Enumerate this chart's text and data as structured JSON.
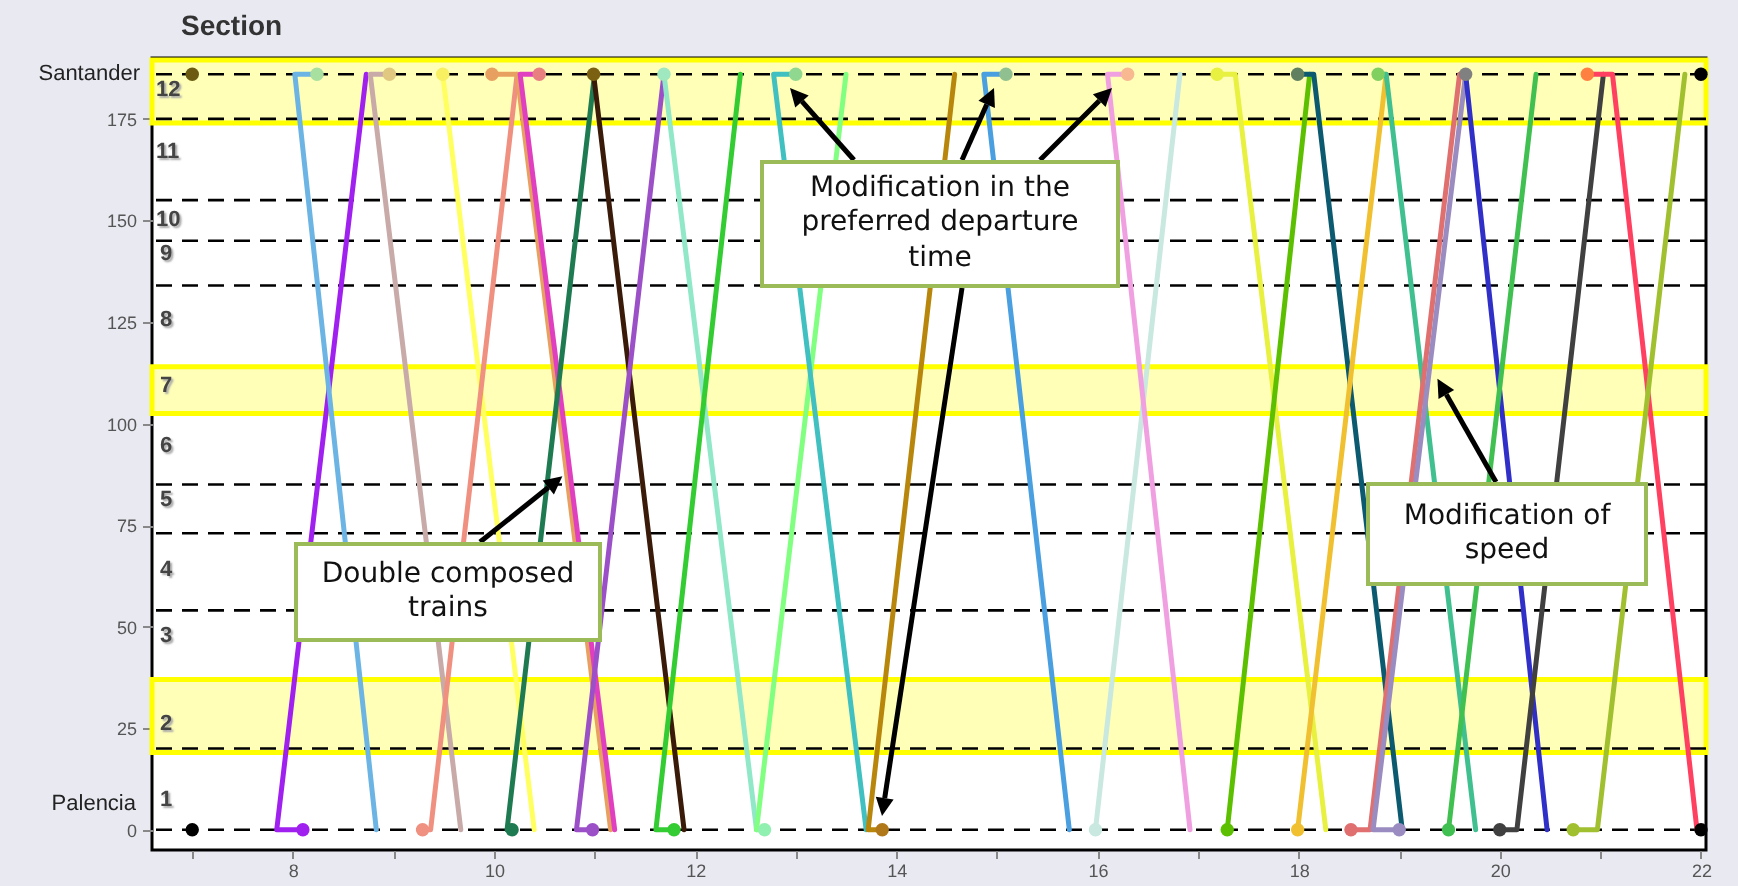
{
  "chart_data": {
    "type": "line",
    "ylabel": "Section",
    "xlim": [
      6.6,
      22.05
    ],
    "xticks": [
      {
        "value": 7,
        "label": null
      },
      8,
      {
        "value": 9,
        "label": null
      },
      10,
      {
        "value": 11,
        "label": null
      },
      12,
      {
        "value": 13,
        "label": null
      },
      14,
      {
        "value": 15,
        "label": null
      },
      16,
      {
        "value": 17,
        "label": null
      },
      18,
      {
        "value": 19,
        "label": null
      },
      20,
      {
        "value": 21,
        "label": null
      },
      22
    ],
    "ylim": [
      -5,
      190
    ],
    "yticks": [
      0,
      25,
      50,
      75,
      100,
      125,
      150,
      175
    ],
    "grid": false,
    "legend": false,
    "series": [
      {
        "type": "line",
        "color": "#a020f0",
        "x": [
          8.1,
          7.84,
          8.73
        ],
        "values": [
          0,
          0,
          186
        ]
      },
      {
        "type": "line",
        "color": "#6cb4e4",
        "x": [
          8.24,
          8.02,
          8.83
        ],
        "values": [
          186,
          186,
          0
        ]
      },
      {
        "type": "line",
        "color": "#c8aaa8",
        "x": [
          8.96,
          8.77,
          9.67
        ],
        "values": [
          186,
          186,
          0
        ]
      },
      {
        "type": "line",
        "color": "#ffff60",
        "x": [
          9.49,
          10.4
        ],
        "values": [
          186,
          0
        ]
      },
      {
        "type": "line",
        "color": "#f09080",
        "x": [
          9.29,
          9.37,
          10.23
        ],
        "values": [
          0,
          0,
          186
        ]
      },
      {
        "type": "line",
        "color": "#e8a060",
        "x": [
          9.98,
          10.23,
          11.16
        ],
        "values": [
          186,
          186,
          0
        ]
      },
      {
        "type": "line",
        "color": "#e040c0",
        "x": [
          10.45,
          10.26,
          11.2
        ],
        "values": [
          186,
          186,
          0
        ]
      },
      {
        "type": "line",
        "color": "#1e7a50",
        "x": [
          10.18,
          10.13,
          11.0
        ],
        "values": [
          0,
          0,
          186
        ]
      },
      {
        "type": "line",
        "color": "#3a1a08",
        "x": [
          10.99,
          11.89
        ],
        "values": [
          186,
          0
        ]
      },
      {
        "type": "line",
        "color": "#9b50c8",
        "x": [
          10.98,
          10.82,
          11.69
        ],
        "values": [
          0,
          0,
          186
        ]
      },
      {
        "type": "line",
        "color": "#90e8c8",
        "x": [
          11.69,
          12.61
        ],
        "values": [
          186,
          0
        ]
      },
      {
        "type": "line",
        "color": "#80ff80",
        "x": [
          12.69,
          12.61,
          13.5
        ],
        "values": [
          0,
          0,
          186
        ]
      },
      {
        "type": "line",
        "color": "#33cc33",
        "x": [
          11.79,
          11.61,
          12.45
        ],
        "values": [
          0,
          0,
          186
        ]
      },
      {
        "type": "line",
        "color": "#40c0c0",
        "x": [
          13.0,
          12.78,
          13.7
        ],
        "values": [
          186,
          186,
          0
        ]
      },
      {
        "type": "line",
        "color": "#b8860b",
        "x": [
          13.86,
          13.72,
          14.58
        ],
        "values": [
          0,
          0,
          186
        ]
      },
      {
        "type": "line",
        "color": "#4a9fe0",
        "x": [
          15.09,
          14.87,
          15.72
        ],
        "values": [
          186,
          186,
          0
        ]
      },
      {
        "type": "line",
        "color": "#c8e8e0",
        "x": [
          15.98,
          16.82
        ],
        "values": [
          0,
          186
        ]
      },
      {
        "type": "line",
        "color": "#f0a0e0",
        "x": [
          16.3,
          16.1,
          16.92
        ],
        "values": [
          186,
          186,
          0
        ]
      },
      {
        "type": "line",
        "color": "#e8f040",
        "x": [
          17.19,
          17.37,
          18.27
        ],
        "values": [
          186,
          186,
          0
        ]
      },
      {
        "type": "line",
        "color": "#5cc000",
        "x": [
          17.29,
          18.11
        ],
        "values": [
          0,
          186
        ]
      },
      {
        "type": "line",
        "color": "#0b5a70",
        "x": [
          17.99,
          18.15,
          19.03
        ],
        "values": [
          186,
          186,
          0
        ]
      },
      {
        "type": "line",
        "color": "#f0c030",
        "x": [
          17.99,
          18.87
        ],
        "values": [
          0,
          186
        ]
      },
      {
        "type": "line",
        "color": "#40c090",
        "x": [
          18.79,
          18.87,
          19.76
        ],
        "values": [
          186,
          186,
          0
        ]
      },
      {
        "type": "line",
        "color": "#e07070",
        "x": [
          18.52,
          18.71,
          19.6
        ],
        "values": [
          0,
          0,
          186
        ]
      },
      {
        "type": "line",
        "color": "#9a8cc0",
        "x": [
          19.0,
          18.74,
          19.66
        ],
        "values": [
          0,
          0,
          186
        ]
      },
      {
        "type": "line",
        "color": "#3030c8",
        "x": [
          19.66,
          20.47
        ],
        "values": [
          186,
          0
        ]
      },
      {
        "type": "line",
        "color": "#40c050",
        "x": [
          19.49,
          20.36
        ],
        "values": [
          0,
          186
        ]
      },
      {
        "type": "line",
        "color": "#404040",
        "x": [
          20.0,
          20.17,
          21.03
        ],
        "values": [
          0,
          0,
          186
        ]
      },
      {
        "type": "line",
        "color": "#ff4060",
        "x": [
          20.87,
          21.12,
          21.96
        ],
        "values": [
          186,
          186,
          0
        ]
      },
      {
        "type": "line",
        "color": "#a0c030",
        "x": [
          20.73,
          20.97,
          21.84
        ],
        "values": [
          0,
          0,
          186
        ]
      },
      {
        "type": "scatter",
        "marker": "circle",
        "x": [
          8.1,
          8.24,
          8.96,
          9.49,
          9.29,
          9.98,
          10.45,
          10.18,
          10.99,
          10.98,
          11.69,
          12.69,
          11.79,
          13.0,
          13.86,
          15.09,
          15.98,
          16.3,
          17.19,
          17.29,
          17.99,
          17.99,
          18.79,
          18.52,
          19.0,
          19.66,
          19.49,
          20.0,
          20.87,
          20.73,
          7,
          7,
          22,
          22
        ],
        "values": [
          0,
          186,
          186,
          186,
          0,
          186,
          186,
          0,
          186,
          0,
          186,
          0,
          0,
          186,
          0,
          186,
          0,
          186,
          186,
          0,
          186,
          0,
          186,
          0,
          0,
          186,
          0,
          0,
          186,
          0,
          0,
          186,
          0,
          186
        ],
        "colors": [
          "#a020f0",
          "#a8e0a0",
          "#e0c880",
          "#f8f060",
          "#f09080",
          "#e8a060",
          "#e88080",
          "#1e7a50",
          "#7a6010",
          "#9b50c8",
          "#a0e8c0",
          "#90f0b0",
          "#33cc33",
          "#90d890",
          "#b07818",
          "#90c090",
          "#c8e8e0",
          "#f8b890",
          "#e8f040",
          "#5cc000",
          "#608060",
          "#f0c030",
          "#80d060",
          "#e07070",
          "#9a8cc0",
          "#808080",
          "#40c050",
          "#404040",
          "#ff8040",
          "#a0c030",
          "#000000",
          "#6b5a10",
          "#000000",
          "#000000"
        ]
      }
    ],
    "ref_lines": [
      {
        "axis": "y",
        "value": 186,
        "color": "#000000",
        "line_style": "dashed"
      },
      {
        "axis": "y",
        "value": 175,
        "color": "#000000",
        "line_style": "dashed"
      },
      {
        "axis": "y",
        "value": 155,
        "color": "#000000",
        "line_style": "dashed"
      },
      {
        "axis": "y",
        "value": 145,
        "color": "#000000",
        "line_style": "dashed"
      },
      {
        "axis": "y",
        "value": 134,
        "color": "#000000",
        "line_style": "dashed"
      },
      {
        "axis": "y",
        "value": 85,
        "color": "#000000",
        "line_style": "dashed"
      },
      {
        "axis": "y",
        "value": 73,
        "color": "#000000",
        "line_style": "dashed"
      },
      {
        "axis": "y",
        "value": 54,
        "color": "#000000",
        "line_style": "dashed"
      },
      {
        "axis": "y",
        "value": 20,
        "color": "#000000",
        "line_style": "dashed"
      },
      {
        "axis": "y",
        "value": 0,
        "color": "#000000",
        "line_style": "dashed"
      }
    ],
    "bands": [
      {
        "axis": "y",
        "from": 174,
        "to": 189.5,
        "color": "#ffff00"
      },
      {
        "axis": "y",
        "from": 102.5,
        "to": 114,
        "color": "#ffff00"
      },
      {
        "axis": "y",
        "from": 19,
        "to": 37,
        "color": "#ffff00"
      }
    ],
    "annotations": [
      {
        "text": "Double composed trains",
        "x": 10.68,
        "y": 87
      },
      "Modification in the preferred departure time",
      {
        "text": "Modification of speed",
        "x": 19.38,
        "y": 111
      },
      "Santander",
      "Palencia",
      "1",
      "2",
      "3",
      "4",
      "5",
      "6",
      "7",
      "8",
      "9",
      "10",
      "11",
      "12"
    ]
  }
}
